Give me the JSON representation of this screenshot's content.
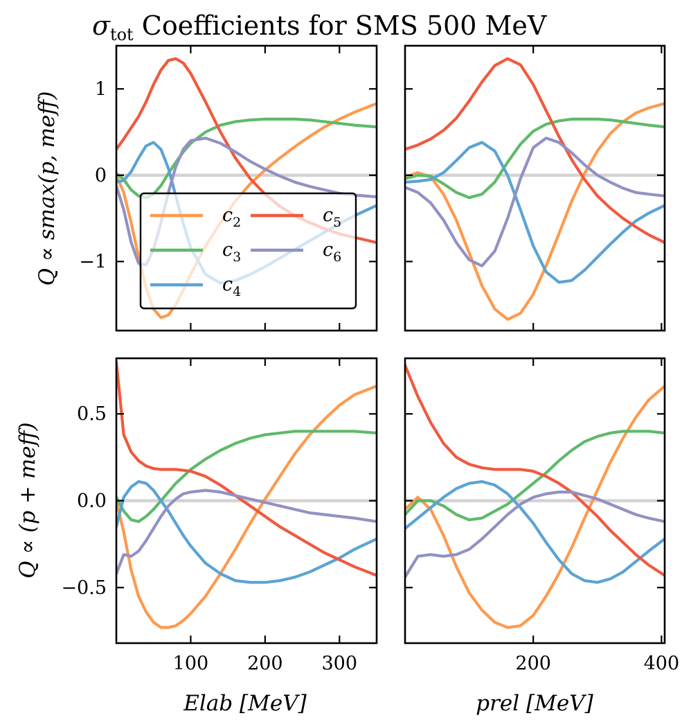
{
  "figure": {
    "title": "σtot Coefficients for SMS 500 MeV",
    "title_main": "σ",
    "title_sub": "tot",
    "title_rest": " Coefficients for SMS 500 MeV"
  },
  "colors": {
    "c2": "#fd9a4e",
    "c3": "#5fba6a",
    "c4": "#5ba3d4",
    "c5": "#f05a3e",
    "c6": "#9291c4",
    "zero_line": "#d3d3d3"
  },
  "axes_text": {
    "row0_ylabel": "Q ∝ smax(p, meff)",
    "row1_ylabel": "Q ∝ (p + meff)",
    "col0_xlabel": "Elab [MeV]",
    "col1_xlabel": "prel [MeV]",
    "row0_yticks": [
      "1",
      "0",
      "−1"
    ],
    "row1_yticks": [
      "0.5",
      "0.0",
      "−0.5"
    ],
    "col0_xticks": [
      "100",
      "200",
      "300"
    ],
    "col1_xticks": [
      "200",
      "400"
    ]
  },
  "legend": [
    {
      "key": "c2",
      "base": "c",
      "sub": "2"
    },
    {
      "key": "c3",
      "base": "c",
      "sub": "3"
    },
    {
      "key": "c4",
      "base": "c",
      "sub": "4"
    },
    {
      "key": "c5",
      "base": "c",
      "sub": "5"
    },
    {
      "key": "c6",
      "base": "c",
      "sub": "6"
    }
  ],
  "chart_data": [
    {
      "type": "line",
      "panel": "top-left",
      "xlabel": "E_lab [MeV]",
      "ylabel": "Q ∝ smax(p, m_eff)",
      "xlim": [
        0,
        350
      ],
      "ylim": [
        -1.8,
        1.5
      ],
      "grid": false,
      "legend": "lower-left",
      "series": [
        {
          "name": "c2",
          "x": [
            0,
            10,
            20,
            30,
            40,
            50,
            60,
            70,
            80,
            90,
            100,
            120,
            140,
            160,
            180,
            200,
            220,
            240,
            260,
            280,
            300,
            320,
            350
          ],
          "y": [
            0,
            -0.2,
            -0.55,
            -0.95,
            -1.3,
            -1.55,
            -1.65,
            -1.62,
            -1.5,
            -1.33,
            -1.15,
            -0.82,
            -0.55,
            -0.3,
            -0.1,
            0.06,
            0.2,
            0.33,
            0.45,
            0.56,
            0.65,
            0.73,
            0.83
          ]
        },
        {
          "name": "c3",
          "x": [
            0,
            10,
            20,
            30,
            40,
            50,
            60,
            70,
            80,
            90,
            100,
            120,
            140,
            160,
            180,
            200,
            220,
            240,
            260,
            280,
            300,
            320,
            350
          ],
          "y": [
            0.02,
            -0.05,
            -0.17,
            -0.24,
            -0.26,
            -0.22,
            -0.12,
            0.02,
            0.15,
            0.27,
            0.37,
            0.5,
            0.58,
            0.62,
            0.64,
            0.65,
            0.65,
            0.65,
            0.64,
            0.62,
            0.6,
            0.58,
            0.56
          ]
        },
        {
          "name": "c4",
          "x": [
            0,
            10,
            20,
            30,
            40,
            50,
            60,
            70,
            80,
            90,
            100,
            120,
            140,
            160,
            180,
            200,
            220,
            240,
            260,
            280,
            300,
            320,
            350
          ],
          "y": [
            -0.08,
            -0.06,
            0.04,
            0.2,
            0.34,
            0.38,
            0.3,
            0.08,
            -0.24,
            -0.56,
            -0.84,
            -1.15,
            -1.25,
            -1.22,
            -1.15,
            -1.06,
            -0.96,
            -0.86,
            -0.76,
            -0.66,
            -0.56,
            -0.47,
            -0.35
          ]
        },
        {
          "name": "c5",
          "x": [
            0,
            10,
            20,
            30,
            40,
            50,
            60,
            70,
            80,
            90,
            100,
            120,
            140,
            160,
            180,
            200,
            220,
            240,
            260,
            280,
            300,
            320,
            350
          ],
          "y": [
            0.3,
            0.42,
            0.55,
            0.68,
            0.85,
            1.05,
            1.22,
            1.33,
            1.35,
            1.3,
            1.18,
            0.85,
            0.5,
            0.2,
            -0.04,
            -0.22,
            -0.36,
            -0.47,
            -0.55,
            -0.62,
            -0.68,
            -0.72,
            -0.78
          ]
        },
        {
          "name": "c6",
          "x": [
            0,
            10,
            20,
            30,
            40,
            50,
            60,
            70,
            80,
            90,
            100,
            120,
            140,
            160,
            180,
            200,
            220,
            240,
            260,
            280,
            300,
            320,
            350
          ],
          "y": [
            -0.12,
            -0.4,
            -0.78,
            -1.02,
            -1.04,
            -0.86,
            -0.55,
            -0.2,
            0.1,
            0.3,
            0.4,
            0.43,
            0.37,
            0.27,
            0.16,
            0.07,
            -0.01,
            -0.08,
            -0.13,
            -0.17,
            -0.21,
            -0.23,
            -0.25
          ]
        }
      ]
    },
    {
      "type": "line",
      "panel": "top-right",
      "xlabel": "p_rel [MeV]",
      "ylabel": "",
      "xlim": [
        0,
        405
      ],
      "ylim": [
        -1.8,
        1.5
      ],
      "grid": false,
      "legend": "none",
      "series": [
        {
          "name": "c2",
          "x": [
            0,
            20,
            40,
            60,
            80,
            100,
            120,
            140,
            160,
            180,
            200,
            220,
            240,
            260,
            280,
            300,
            320,
            340,
            360,
            380,
            405
          ],
          "y": [
            -0.02,
            0.03,
            -0.02,
            -0.22,
            -0.52,
            -0.9,
            -1.28,
            -1.55,
            -1.67,
            -1.6,
            -1.38,
            -1.05,
            -0.68,
            -0.3,
            0.02,
            0.28,
            0.48,
            0.62,
            0.72,
            0.78,
            0.83
          ]
        },
        {
          "name": "c3",
          "x": [
            0,
            20,
            40,
            60,
            80,
            100,
            120,
            140,
            160,
            180,
            200,
            220,
            240,
            260,
            280,
            300,
            320,
            340,
            360,
            380,
            405
          ],
          "y": [
            -0.04,
            0.0,
            -0.01,
            -0.1,
            -0.2,
            -0.26,
            -0.22,
            -0.08,
            0.15,
            0.36,
            0.51,
            0.59,
            0.63,
            0.65,
            0.65,
            0.65,
            0.64,
            0.62,
            0.6,
            0.58,
            0.56
          ]
        },
        {
          "name": "c4",
          "x": [
            0,
            20,
            40,
            60,
            80,
            100,
            120,
            140,
            160,
            180,
            200,
            220,
            240,
            260,
            280,
            300,
            320,
            340,
            360,
            380,
            405
          ],
          "y": [
            -0.08,
            -0.07,
            -0.05,
            0.03,
            0.17,
            0.32,
            0.38,
            0.28,
            0.0,
            -0.4,
            -0.82,
            -1.12,
            -1.24,
            -1.22,
            -1.1,
            -0.95,
            -0.8,
            -0.66,
            -0.53,
            -0.44,
            -0.35
          ]
        },
        {
          "name": "c5",
          "x": [
            0,
            20,
            40,
            60,
            80,
            100,
            120,
            140,
            160,
            180,
            200,
            220,
            240,
            260,
            280,
            300,
            320,
            340,
            360,
            380,
            405
          ],
          "y": [
            0.3,
            0.35,
            0.42,
            0.52,
            0.66,
            0.86,
            1.08,
            1.27,
            1.35,
            1.28,
            1.05,
            0.75,
            0.45,
            0.18,
            -0.05,
            -0.24,
            -0.38,
            -0.5,
            -0.6,
            -0.69,
            -0.78
          ]
        },
        {
          "name": "c6",
          "x": [
            0,
            20,
            40,
            60,
            80,
            100,
            120,
            140,
            160,
            180,
            200,
            220,
            240,
            260,
            280,
            300,
            320,
            340,
            360,
            380,
            405
          ],
          "y": [
            -0.14,
            -0.2,
            -0.32,
            -0.52,
            -0.78,
            -0.98,
            -1.05,
            -0.88,
            -0.5,
            -0.04,
            0.32,
            0.43,
            0.38,
            0.26,
            0.12,
            0.0,
            -0.08,
            -0.15,
            -0.2,
            -0.22,
            -0.24
          ]
        }
      ]
    },
    {
      "type": "line",
      "panel": "bottom-left",
      "xlabel": "E_lab [MeV]",
      "ylabel": "Q ∝ (p + m_eff)",
      "xlim": [
        0,
        350
      ],
      "ylim": [
        -0.82,
        0.82
      ],
      "grid": false,
      "legend": "none",
      "series": [
        {
          "name": "c2",
          "x": [
            0,
            10,
            20,
            30,
            40,
            50,
            60,
            70,
            80,
            90,
            100,
            120,
            140,
            160,
            180,
            200,
            220,
            240,
            260,
            280,
            300,
            320,
            350
          ],
          "y": [
            0,
            -0.18,
            -0.4,
            -0.55,
            -0.64,
            -0.7,
            -0.73,
            -0.73,
            -0.72,
            -0.69,
            -0.65,
            -0.55,
            -0.42,
            -0.28,
            -0.13,
            0.01,
            0.14,
            0.27,
            0.38,
            0.47,
            0.55,
            0.61,
            0.66
          ]
        },
        {
          "name": "c3",
          "x": [
            0,
            10,
            20,
            30,
            40,
            50,
            60,
            70,
            80,
            90,
            100,
            120,
            140,
            160,
            180,
            200,
            220,
            240,
            260,
            280,
            300,
            320,
            350
          ],
          "y": [
            0.02,
            -0.06,
            -0.11,
            -0.12,
            -0.09,
            -0.05,
            0.0,
            0.05,
            0.1,
            0.14,
            0.18,
            0.24,
            0.29,
            0.33,
            0.36,
            0.38,
            0.39,
            0.4,
            0.4,
            0.4,
            0.4,
            0.4,
            0.39
          ]
        },
        {
          "name": "c4",
          "x": [
            0,
            10,
            20,
            30,
            40,
            50,
            60,
            70,
            80,
            90,
            100,
            120,
            140,
            160,
            180,
            200,
            220,
            240,
            260,
            280,
            300,
            320,
            350
          ],
          "y": [
            -0.15,
            0.02,
            0.08,
            0.11,
            0.1,
            0.06,
            0.0,
            -0.06,
            -0.13,
            -0.2,
            -0.26,
            -0.36,
            -0.42,
            -0.46,
            -0.47,
            -0.47,
            -0.46,
            -0.44,
            -0.41,
            -0.37,
            -0.33,
            -0.28,
            -0.22
          ]
        },
        {
          "name": "c5",
          "x": [
            0,
            10,
            20,
            30,
            40,
            50,
            60,
            70,
            80,
            90,
            100,
            120,
            140,
            160,
            180,
            200,
            220,
            240,
            260,
            280,
            300,
            320,
            350
          ],
          "y": [
            0.8,
            0.38,
            0.28,
            0.23,
            0.2,
            0.185,
            0.18,
            0.18,
            0.18,
            0.175,
            0.17,
            0.14,
            0.09,
            0.03,
            -0.03,
            -0.09,
            -0.15,
            -0.2,
            -0.25,
            -0.3,
            -0.34,
            -0.38,
            -0.43
          ]
        },
        {
          "name": "c6",
          "x": [
            0,
            10,
            20,
            30,
            40,
            50,
            60,
            70,
            80,
            90,
            100,
            120,
            140,
            160,
            180,
            200,
            220,
            240,
            260,
            280,
            300,
            320,
            350
          ],
          "y": [
            -0.42,
            -0.31,
            -0.32,
            -0.29,
            -0.23,
            -0.16,
            -0.09,
            -0.03,
            0.01,
            0.04,
            0.05,
            0.06,
            0.05,
            0.03,
            0.01,
            -0.01,
            -0.03,
            -0.05,
            -0.07,
            -0.08,
            -0.09,
            -0.1,
            -0.12
          ]
        }
      ]
    },
    {
      "type": "line",
      "panel": "bottom-right",
      "xlabel": "p_rel [MeV]",
      "ylabel": "",
      "xlim": [
        0,
        405
      ],
      "ylim": [
        -0.82,
        0.82
      ],
      "grid": false,
      "legend": "none",
      "series": [
        {
          "name": "c2",
          "x": [
            0,
            20,
            40,
            60,
            80,
            100,
            120,
            140,
            160,
            180,
            200,
            220,
            240,
            260,
            280,
            300,
            320,
            340,
            360,
            380,
            405
          ],
          "y": [
            -0.05,
            0.02,
            -0.05,
            -0.2,
            -0.38,
            -0.53,
            -0.63,
            -0.7,
            -0.73,
            -0.72,
            -0.66,
            -0.55,
            -0.42,
            -0.27,
            -0.1,
            0.06,
            0.22,
            0.36,
            0.48,
            0.58,
            0.66
          ]
        },
        {
          "name": "c3",
          "x": [
            0,
            20,
            40,
            60,
            80,
            100,
            120,
            140,
            160,
            180,
            200,
            220,
            240,
            260,
            280,
            300,
            320,
            340,
            360,
            380,
            405
          ],
          "y": [
            -0.08,
            0.0,
            0.0,
            -0.03,
            -0.08,
            -0.11,
            -0.1,
            -0.06,
            -0.02,
            0.04,
            0.1,
            0.16,
            0.23,
            0.29,
            0.34,
            0.37,
            0.39,
            0.4,
            0.4,
            0.4,
            0.39
          ]
        },
        {
          "name": "c4",
          "x": [
            0,
            20,
            40,
            60,
            80,
            100,
            120,
            140,
            160,
            180,
            200,
            220,
            240,
            260,
            280,
            300,
            320,
            340,
            360,
            380,
            405
          ],
          "y": [
            -0.16,
            -0.1,
            -0.04,
            0.02,
            0.07,
            0.1,
            0.11,
            0.09,
            0.04,
            -0.04,
            -0.13,
            -0.24,
            -0.34,
            -0.42,
            -0.46,
            -0.47,
            -0.45,
            -0.41,
            -0.35,
            -0.29,
            -0.22
          ]
        },
        {
          "name": "c5",
          "x": [
            0,
            20,
            40,
            60,
            80,
            100,
            120,
            140,
            160,
            180,
            200,
            220,
            240,
            260,
            280,
            300,
            320,
            340,
            360,
            380,
            405
          ],
          "y": [
            0.78,
            0.6,
            0.45,
            0.33,
            0.25,
            0.21,
            0.19,
            0.18,
            0.18,
            0.18,
            0.17,
            0.14,
            0.1,
            0.05,
            -0.02,
            -0.09,
            -0.17,
            -0.24,
            -0.31,
            -0.37,
            -0.43
          ]
        },
        {
          "name": "c6",
          "x": [
            0,
            20,
            40,
            60,
            80,
            100,
            120,
            140,
            160,
            180,
            200,
            220,
            240,
            260,
            280,
            300,
            320,
            340,
            360,
            380,
            405
          ],
          "y": [
            -0.44,
            -0.32,
            -0.31,
            -0.32,
            -0.31,
            -0.28,
            -0.22,
            -0.15,
            -0.08,
            -0.02,
            0.02,
            0.04,
            0.05,
            0.05,
            0.03,
            0.01,
            -0.02,
            -0.05,
            -0.08,
            -0.1,
            -0.12
          ]
        }
      ]
    }
  ]
}
